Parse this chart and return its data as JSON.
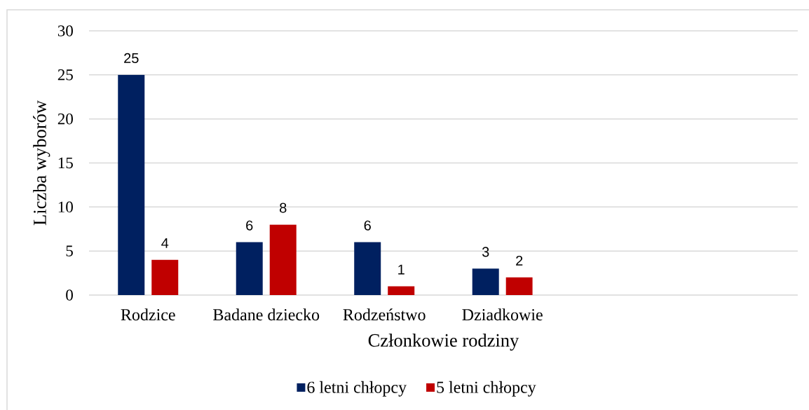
{
  "chart_data": {
    "type": "bar",
    "xlabel": "Członkowie rodziny",
    "ylabel": "Liczba wyborów",
    "categories": [
      "Rodzice",
      "Badane dziecko",
      "Rodzeństwo",
      "Dziadkowie",
      null,
      null
    ],
    "series": [
      {
        "name": "6 letni chłopcy",
        "color": "#002060",
        "values": [
          25,
          6,
          6,
          3,
          null,
          null
        ]
      },
      {
        "name": "5 letni chłopcy",
        "color": "#c00000",
        "values": [
          4,
          8,
          1,
          2,
          null,
          null
        ]
      }
    ],
    "ylim": [
      0,
      30
    ],
    "yticks": [
      0,
      5,
      10,
      15,
      20,
      25,
      30
    ],
    "grid": "y",
    "legend": "bottom",
    "data_labels": true
  }
}
